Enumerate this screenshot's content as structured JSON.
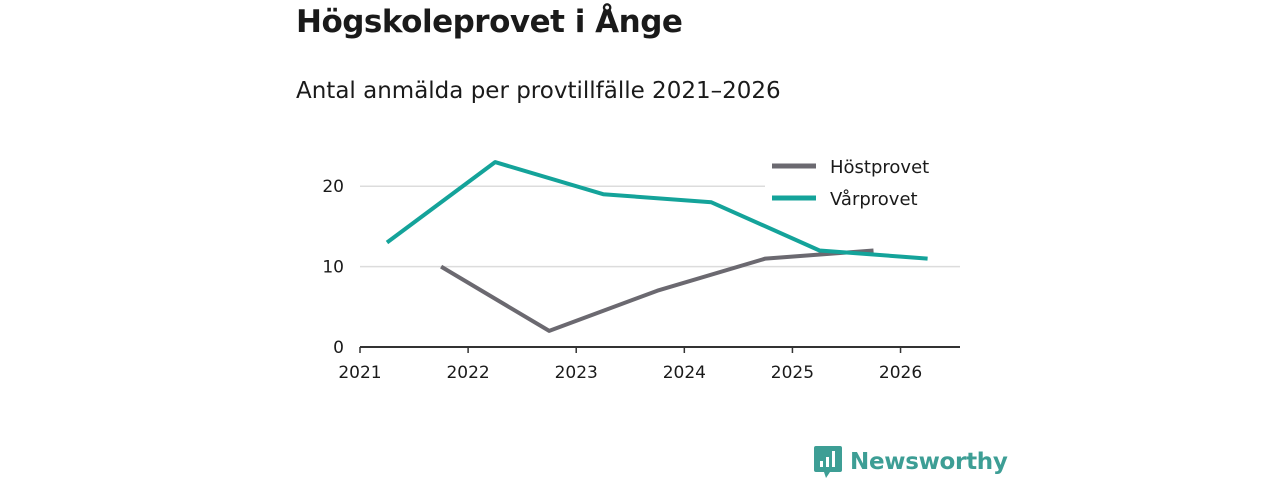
{
  "header": {
    "title": "Högskoleprovet i Ånge",
    "subtitle": "Antal anmälda per provtillfälle 2021–2026"
  },
  "chart_data": {
    "type": "line",
    "x_ticks": [
      "2021",
      "2022",
      "2023",
      "2024",
      "2025",
      "2026"
    ],
    "y_ticks": [
      "0",
      "10",
      "20"
    ],
    "ylim": [
      0,
      25
    ],
    "xlim": [
      2021,
      2026.55
    ],
    "series": [
      {
        "name": "Höstprovet",
        "color": "#6b6970",
        "x": [
          2021.75,
          2022.75,
          2023.75,
          2024.75,
          2025.75
        ],
        "y": [
          10,
          2,
          7,
          11,
          12
        ]
      },
      {
        "name": "Vårprovet",
        "color": "#14a39a",
        "x": [
          2021.25,
          2022.25,
          2023.25,
          2024.25,
          2025.25,
          2026.25
        ],
        "y": [
          13,
          23,
          19,
          18,
          12,
          11
        ]
      }
    ],
    "legend": [
      "Höstprovet",
      "Vårprovet"
    ],
    "legend_position": "top-right",
    "grid": true
  },
  "brand": {
    "name": "Newsworthy",
    "icon": "newsworthy-logo-icon",
    "color": "#3d9e95"
  }
}
